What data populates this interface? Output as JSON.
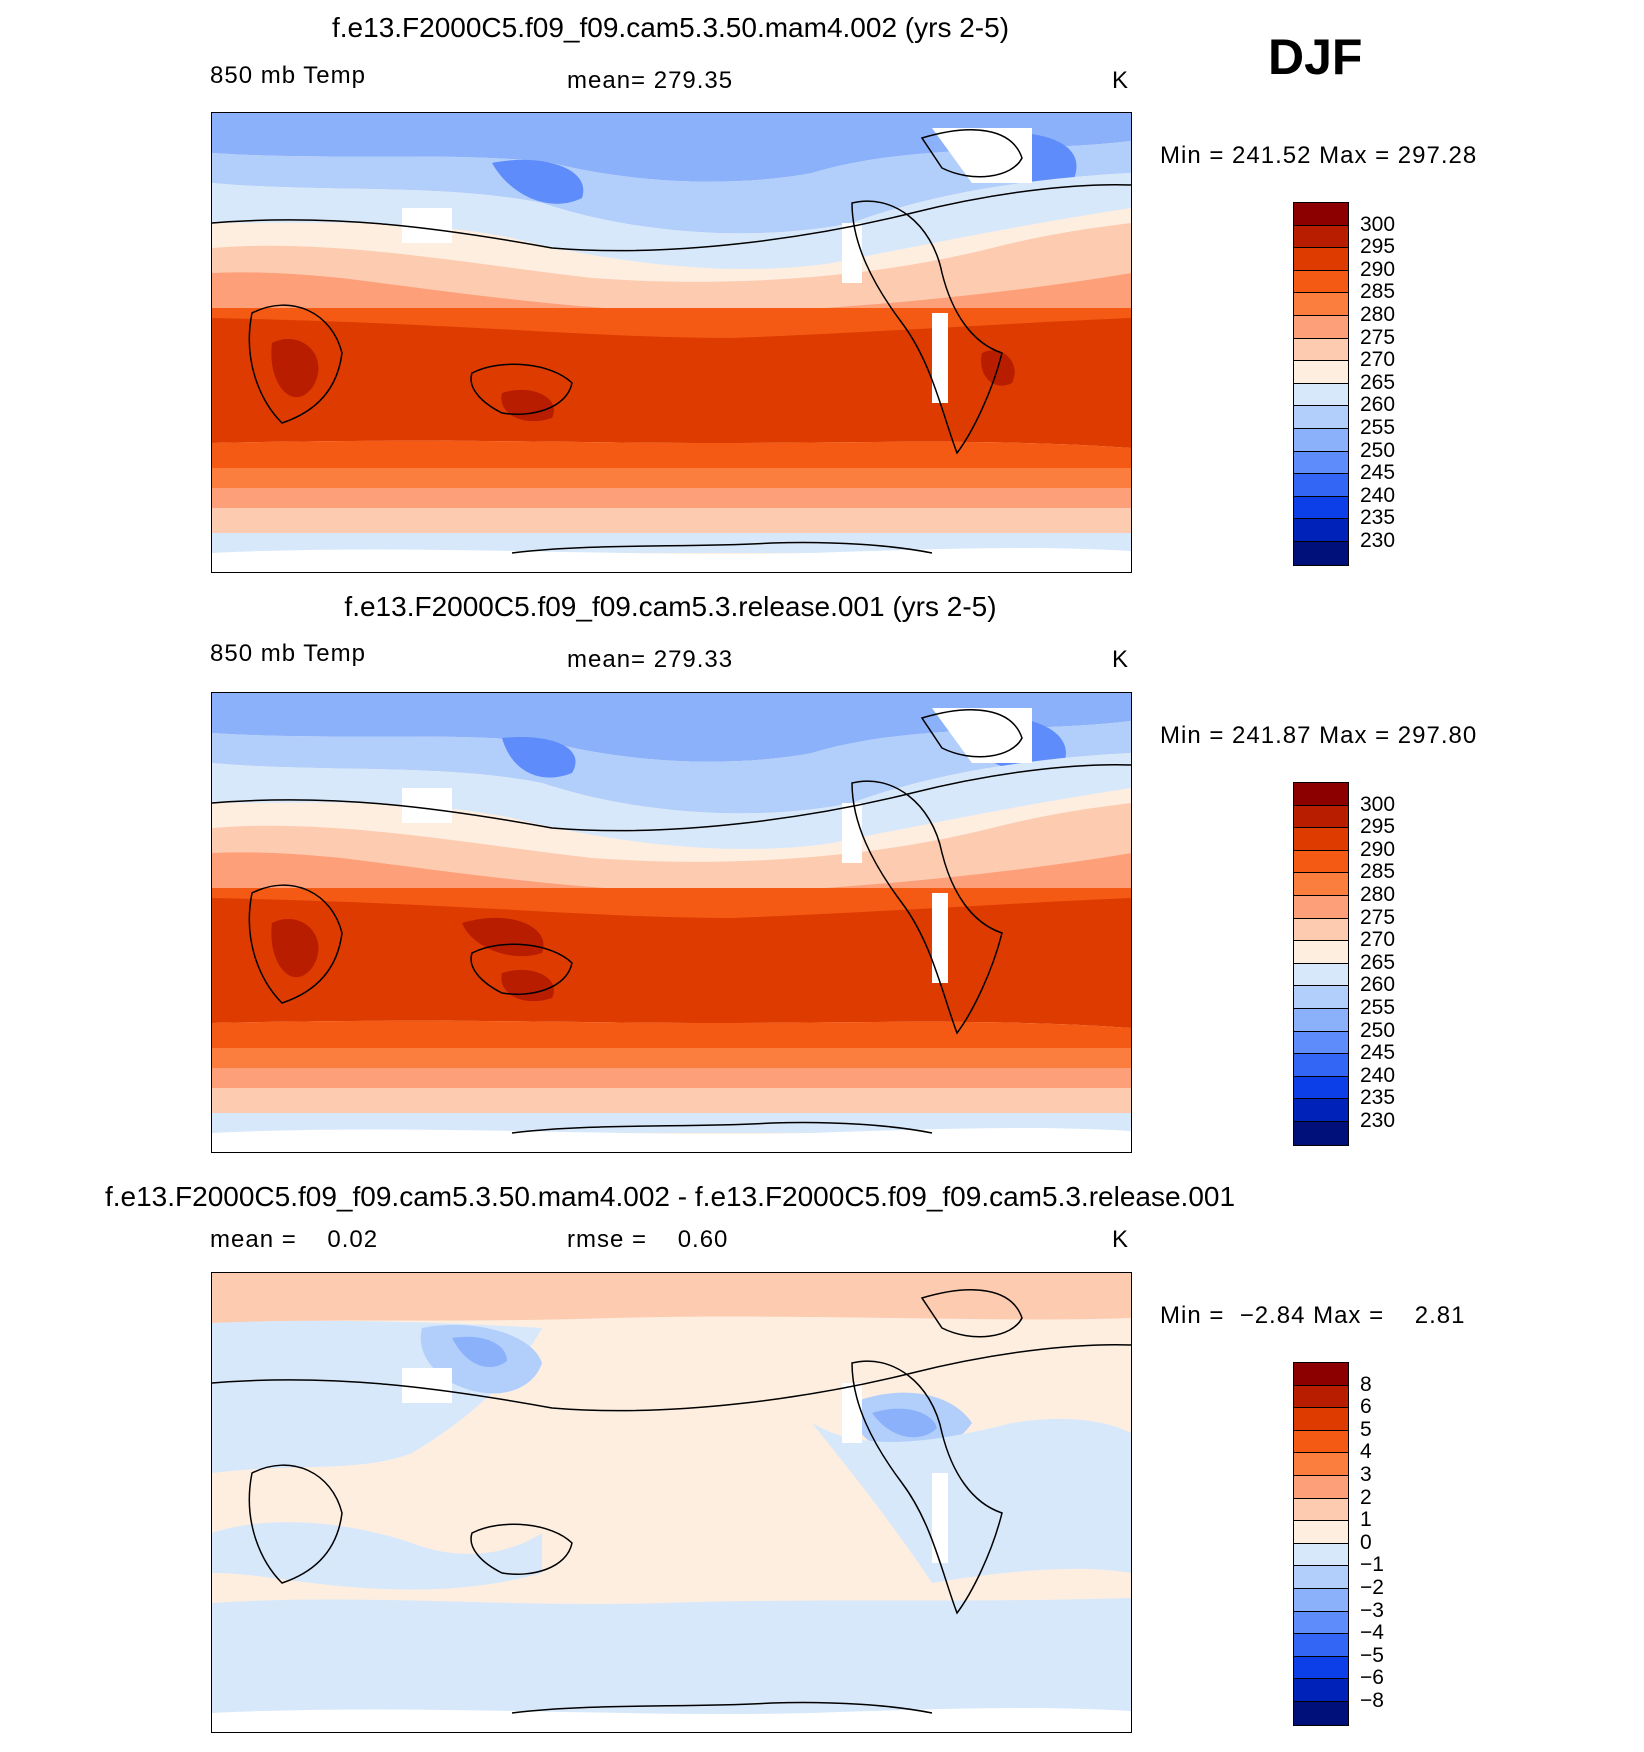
{
  "season": "DJF",
  "panels": [
    {
      "title": "f.e13.F2000C5.f09_f09.cam5.3.50.mam4.002 (yrs 2-5)",
      "left_label": "850 mb Temp",
      "center_label": "mean= 279.35",
      "units": "K",
      "minmax": "Min = 241.52 Max = 297.28",
      "kind": "abs"
    },
    {
      "title": "f.e13.F2000C5.f09_f09.cam5.3.release.001 (yrs 2-5)",
      "left_label": "850 mb Temp",
      "center_label": "mean= 279.33",
      "units": "K",
      "minmax": "Min = 241.87 Max = 297.80",
      "kind": "abs"
    },
    {
      "title": "f.e13.F2000C5.f09_f09.cam5.3.50.mam4.002 - f.e13.F2000C5.f09_f09.cam5.3.release.001",
      "left_label": "mean =    0.02",
      "center_label": "rmse =    0.60",
      "units": "K",
      "minmax": "Min =  −2.84 Max =    2.81",
      "kind": "diff"
    }
  ],
  "colorbars": {
    "abs": {
      "labels": [
        "300",
        "295",
        "290",
        "285",
        "280",
        "275",
        "270",
        "265",
        "260",
        "255",
        "250",
        "245",
        "240",
        "235",
        "230"
      ],
      "colors": [
        "#8c0000",
        "#b81d00",
        "#dd3b00",
        "#f45a14",
        "#fc7e3e",
        "#fda07a",
        "#fdcbb0",
        "#fdeee0",
        "#d8e8fb",
        "#b2cffb",
        "#8bb1fb",
        "#5e8cfa",
        "#3466f6",
        "#0c3fe8",
        "#0022b8",
        "#00107a"
      ]
    },
    "diff": {
      "labels": [
        "8",
        "6",
        "5",
        "4",
        "3",
        "2",
        "1",
        "0",
        "−1",
        "−2",
        "−3",
        "−4",
        "−5",
        "−6",
        "−8"
      ],
      "colors": [
        "#8c0000",
        "#b81d00",
        "#dd3b00",
        "#f45a14",
        "#fc7e3e",
        "#fda07a",
        "#fdcbb0",
        "#fdeee0",
        "#d8e8fb",
        "#b2cffb",
        "#8bb1fb",
        "#5e8cfa",
        "#3466f6",
        "#0c3fe8",
        "#0022b8",
        "#00107a"
      ]
    }
  }
}
